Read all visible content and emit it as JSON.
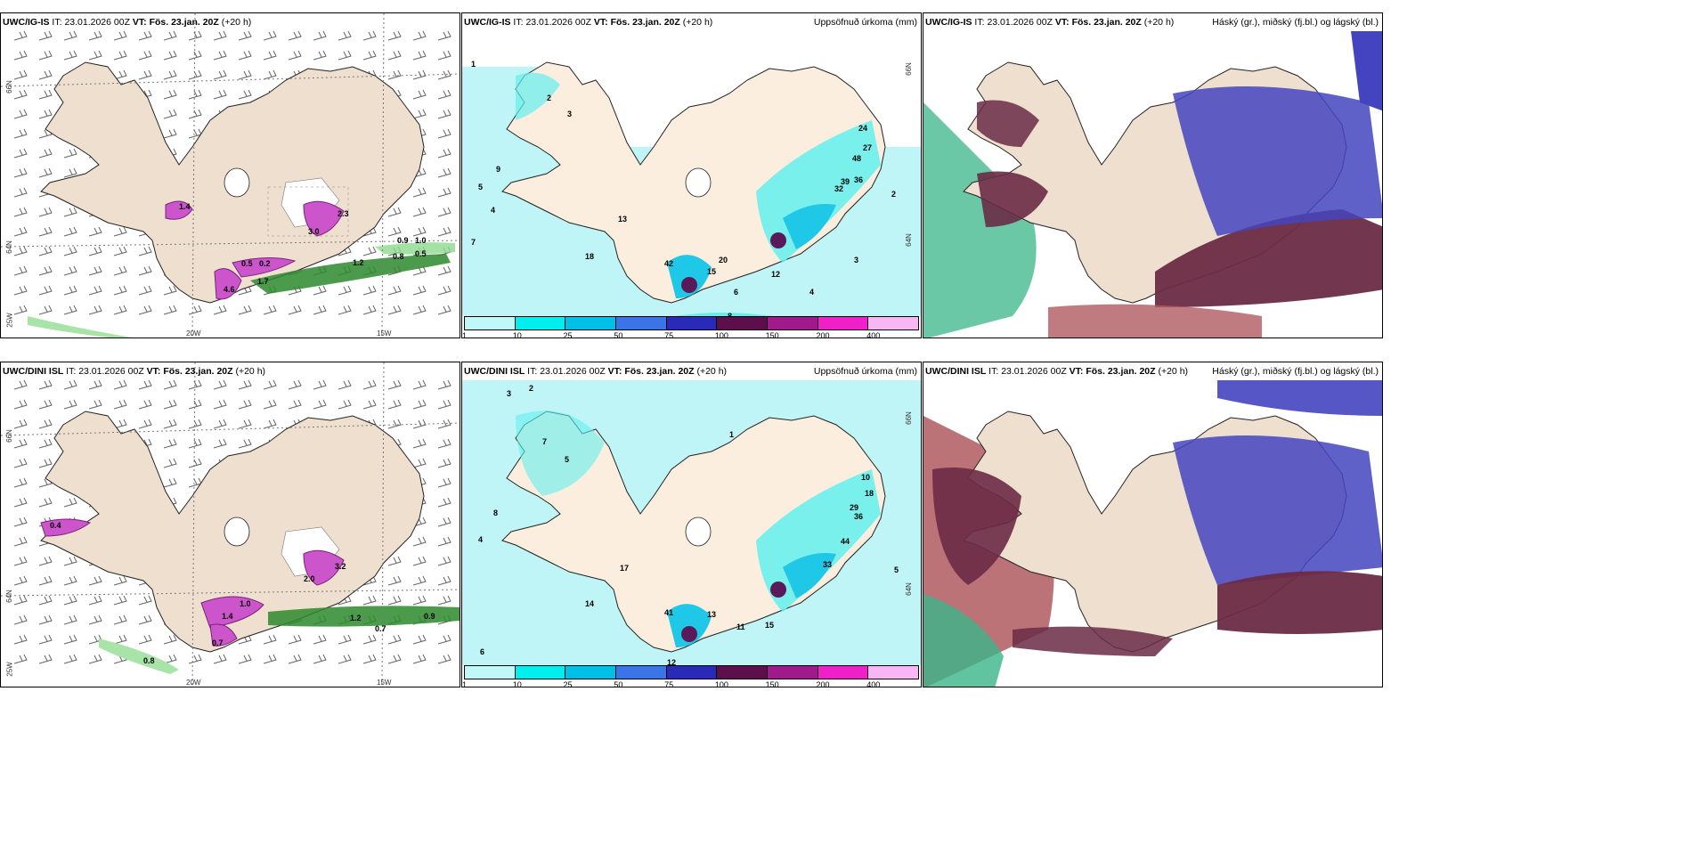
{
  "colors": {
    "land": "#eedfcf",
    "sea_precip": "#bff5f7",
    "ocean": "#ffffff",
    "precip_cyan": "#62f0ee",
    "precip_mid": "#1fc8e6",
    "precip_dark": "#3b75c9",
    "precip_purple": "#5a1a5a",
    "wind_barb": "#555555",
    "snow_magenta": "#cc44cc",
    "rain_green": "#2d8a2d",
    "cloud_high": "#6a2b45",
    "cloud_mid": "#4444c0",
    "cloud_low": "#3ab58a"
  },
  "colorbar_colors": [
    "#c0f7f8",
    "#00eeee",
    "#00c0e8",
    "#3a74e6",
    "#2a2ab8",
    "#5c0f4a",
    "#a01a8c",
    "#f020c8",
    "#f8b6f4"
  ],
  "colorbar_ticks": [
    "1",
    "10",
    "25",
    "50",
    "75",
    "100",
    "150",
    "200",
    "400"
  ],
  "panels": {
    "top_left": {
      "model": "UWC/IG-IS",
      "it_label": "IT:",
      "it_value": "23.01.2026 00Z",
      "vt_label": "VT:",
      "vt_value": "Fös. 23.jan. 20Z",
      "lead": "(+20 h)",
      "lat_labels": [
        "66N",
        "64N",
        "25W"
      ],
      "lon_labels": [
        "20W",
        "15W"
      ],
      "values": [
        "1.4",
        "2.3",
        "3.0",
        "0.5",
        "0.2",
        "0.9",
        "0.8",
        "0.5",
        "4.6",
        "1.7",
        "1.2",
        "1.0"
      ]
    },
    "top_mid": {
      "model": "UWC/IG-IS",
      "it_label": "IT:",
      "it_value": "23.01.2026 00Z",
      "vt_label": "VT:",
      "vt_value": "Fös. 23.jan. 20Z",
      "lead": "(+20 h)",
      "field": "Uppsöfnuð úrkoma (mm)",
      "lat_labels": [
        "66N",
        "64N"
      ],
      "values": [
        "1",
        "2",
        "3",
        "9",
        "5",
        "4",
        "7",
        "18",
        "13",
        "42",
        "15",
        "20",
        "24",
        "27",
        "48",
        "39",
        "32",
        "36",
        "12",
        "2",
        "3",
        "4",
        "6",
        "8"
      ]
    },
    "top_right": {
      "model": "UWC/IG-IS",
      "it_label": "IT:",
      "it_value": "23.01.2026 00Z",
      "vt_label": "VT:",
      "vt_value": "Fös. 23.jan. 20Z",
      "lead": "(+20 h)",
      "field": "Háský (gr.), miðský (fj.bl.) og lágský (bl.)"
    },
    "bottom_left": {
      "model": "UWC/DINI ISL",
      "it_label": "IT:",
      "it_value": "23.01.2026 00Z",
      "vt_label": "VT:",
      "vt_value": "Fös. 23.jan. 20Z",
      "lead": "(+20 h)",
      "lat_labels": [
        "66N",
        "64N",
        "25W"
      ],
      "lon_labels": [
        "20W",
        "15W"
      ],
      "values": [
        "1.0",
        "0.9",
        "0.7",
        "0.8",
        "1.2",
        "3.2",
        "2.0",
        "1.4",
        "0.7",
        "0.4"
      ]
    },
    "bottom_mid": {
      "model": "UWC/DINI ISL",
      "it_label": "IT:",
      "it_value": "23.01.2026 00Z",
      "vt_label": "VT:",
      "vt_value": "Fös. 23.jan. 20Z",
      "lead": "(+20 h)",
      "field": "Uppsöfnuð úrkoma (mm)",
      "lat_labels": [
        "66N",
        "64N"
      ],
      "values": [
        "3",
        "2",
        "7",
        "5",
        "4",
        "8",
        "6",
        "14",
        "17",
        "41",
        "13",
        "11",
        "15",
        "10",
        "18",
        "29",
        "36",
        "44",
        "33",
        "5",
        "12",
        "1"
      ]
    },
    "bottom_right": {
      "model": "UWC/DINI ISL",
      "it_label": "IT:",
      "it_value": "23.01.2026 00Z",
      "vt_label": "VT:",
      "vt_value": "Fös. 23.jan. 20Z",
      "lead": "(+20 h)",
      "field": "Háský (gr.), miðský (fj.bl.) og lágský (bl.)"
    }
  }
}
